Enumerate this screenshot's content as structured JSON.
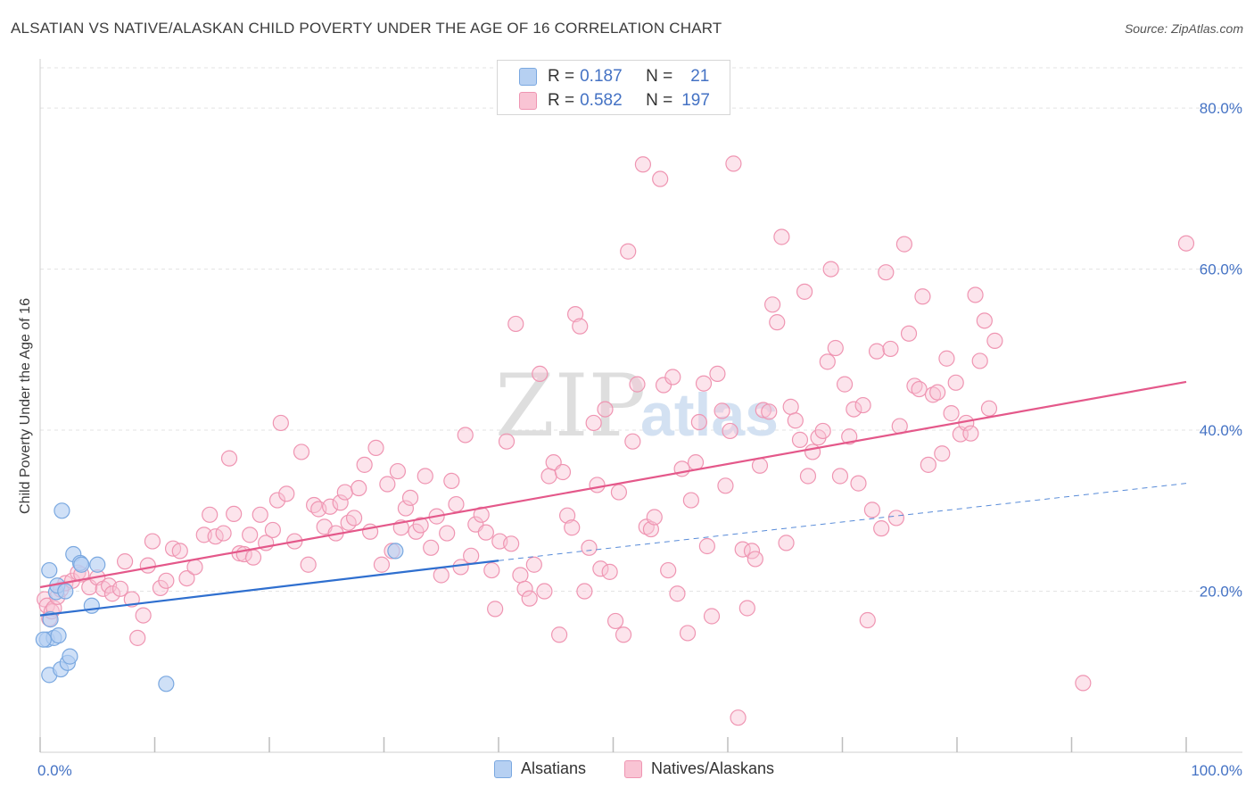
{
  "title": "ALSATIAN VS NATIVE/ALASKAN CHILD POVERTY UNDER THE AGE OF 16 CORRELATION CHART",
  "source": "Source: ZipAtlas.com",
  "watermark": {
    "zip": "ZIP",
    "atlas": "atlas"
  },
  "colors": {
    "blue_fill": "#b6d0f2",
    "blue_stroke": "#7aa8e0",
    "blue_line": "#2f6fcf",
    "pink_fill": "#f9c4d4",
    "pink_stroke": "#ef95b2",
    "pink_line": "#e4588a",
    "axis_text": "#4472c4",
    "grid": "#e3e3e3"
  },
  "legend": {
    "rows": [
      {
        "r_label": "R =",
        "r_value": "0.187",
        "n_label": "N =",
        "n_value": "21"
      },
      {
        "r_label": "R =",
        "r_value": "0.582",
        "n_label": "N =",
        "n_value": "197"
      }
    ],
    "bottom": [
      "Alsatians",
      "Natives/Alaskans"
    ]
  },
  "chart_data": {
    "type": "scatter",
    "title": "ALSATIAN VS NATIVE/ALASKAN CHILD POVERTY UNDER THE AGE OF 16 CORRELATION CHART",
    "xlabel": "",
    "ylabel": "Child Poverty Under the Age of 16",
    "xlim": [
      0,
      100
    ],
    "ylim": [
      0,
      85
    ],
    "x_tick_labels": [
      "0.0%",
      "100.0%"
    ],
    "y_ticks": [
      20,
      40,
      60,
      80
    ],
    "y_tick_labels": [
      "20.0%",
      "40.0%",
      "60.0%",
      "80.0%"
    ],
    "series": [
      {
        "name": "Alsatians",
        "r": 0.187,
        "n": 21,
        "trend": {
          "x0": 0,
          "y0": 17.0,
          "x1": 40,
          "y1": 23.8,
          "dash_x1": 100,
          "dash_y1": 33.4
        },
        "points": [
          [
            0.6,
            14.0
          ],
          [
            0.8,
            9.6
          ],
          [
            0.8,
            22.6
          ],
          [
            0.9,
            16.5
          ],
          [
            1.2,
            14.2
          ],
          [
            1.4,
            19.9
          ],
          [
            1.5,
            20.7
          ],
          [
            1.6,
            14.5
          ],
          [
            1.8,
            10.3
          ],
          [
            1.9,
            30.0
          ],
          [
            2.2,
            20.0
          ],
          [
            2.4,
            11.1
          ],
          [
            2.6,
            11.9
          ],
          [
            2.9,
            24.6
          ],
          [
            3.5,
            23.5
          ],
          [
            3.6,
            23.3
          ],
          [
            4.5,
            18.2
          ],
          [
            5.0,
            23.3
          ],
          [
            11.0,
            8.5
          ],
          [
            31.0,
            25.0
          ],
          [
            0.3,
            14.0
          ]
        ]
      },
      {
        "name": "Natives/Alaskans",
        "r": 0.582,
        "n": 197,
        "trend": {
          "x0": 0,
          "y0": 20.5,
          "x1": 100,
          "y1": 46.0
        },
        "points": [
          [
            0.4,
            19.0
          ],
          [
            0.6,
            18.2
          ],
          [
            0.8,
            16.6
          ],
          [
            1.0,
            17.5
          ],
          [
            1.2,
            17.9
          ],
          [
            1.5,
            19.3
          ],
          [
            1.8,
            20.2
          ],
          [
            2.2,
            21.0
          ],
          [
            2.8,
            21.3
          ],
          [
            3.3,
            22.3
          ],
          [
            3.6,
            22.1
          ],
          [
            4.3,
            20.5
          ],
          [
            5.0,
            21.7
          ],
          [
            5.5,
            20.3
          ],
          [
            6.0,
            20.7
          ],
          [
            6.3,
            19.7
          ],
          [
            7.0,
            20.3
          ],
          [
            7.4,
            23.7
          ],
          [
            8.0,
            19.0
          ],
          [
            8.5,
            14.2
          ],
          [
            9.0,
            17.0
          ],
          [
            9.4,
            23.2
          ],
          [
            9.8,
            26.2
          ],
          [
            10.5,
            20.4
          ],
          [
            11.0,
            21.3
          ],
          [
            11.6,
            25.3
          ],
          [
            12.2,
            25.0
          ],
          [
            12.8,
            21.6
          ],
          [
            13.5,
            23.0
          ],
          [
            14.3,
            27.0
          ],
          [
            14.8,
            29.5
          ],
          [
            15.3,
            26.8
          ],
          [
            16.0,
            27.2
          ],
          [
            16.5,
            36.5
          ],
          [
            16.9,
            29.6
          ],
          [
            17.4,
            24.7
          ],
          [
            17.8,
            24.6
          ],
          [
            18.3,
            27.0
          ],
          [
            18.6,
            24.2
          ],
          [
            19.2,
            29.5
          ],
          [
            19.7,
            26.0
          ],
          [
            20.3,
            27.6
          ],
          [
            20.7,
            31.3
          ],
          [
            21.0,
            40.9
          ],
          [
            21.5,
            32.1
          ],
          [
            22.2,
            26.2
          ],
          [
            22.8,
            37.3
          ],
          [
            23.4,
            23.3
          ],
          [
            23.9,
            30.7
          ],
          [
            24.3,
            30.2
          ],
          [
            24.8,
            28.0
          ],
          [
            25.3,
            30.5
          ],
          [
            25.8,
            27.2
          ],
          [
            26.2,
            31.0
          ],
          [
            26.6,
            32.3
          ],
          [
            26.9,
            28.5
          ],
          [
            27.4,
            29.1
          ],
          [
            27.8,
            32.8
          ],
          [
            28.3,
            35.7
          ],
          [
            28.8,
            27.4
          ],
          [
            29.3,
            37.8
          ],
          [
            29.8,
            23.3
          ],
          [
            30.3,
            33.3
          ],
          [
            30.7,
            25.0
          ],
          [
            31.2,
            34.9
          ],
          [
            31.5,
            27.9
          ],
          [
            31.9,
            30.3
          ],
          [
            32.3,
            31.6
          ],
          [
            32.8,
            27.4
          ],
          [
            33.2,
            28.2
          ],
          [
            33.6,
            34.3
          ],
          [
            34.1,
            25.4
          ],
          [
            34.6,
            29.3
          ],
          [
            35.0,
            22.0
          ],
          [
            35.5,
            27.2
          ],
          [
            35.9,
            33.7
          ],
          [
            36.3,
            30.8
          ],
          [
            36.7,
            23.0
          ],
          [
            37.1,
            39.4
          ],
          [
            37.6,
            24.4
          ],
          [
            38.0,
            28.3
          ],
          [
            38.5,
            29.5
          ],
          [
            38.9,
            27.3
          ],
          [
            39.4,
            22.6
          ],
          [
            39.7,
            17.8
          ],
          [
            40.1,
            26.2
          ],
          [
            40.7,
            38.6
          ],
          [
            41.1,
            25.9
          ],
          [
            41.5,
            53.2
          ],
          [
            41.9,
            22.0
          ],
          [
            42.3,
            20.3
          ],
          [
            42.7,
            19.1
          ],
          [
            43.1,
            23.3
          ],
          [
            43.6,
            47.0
          ],
          [
            44.0,
            20.0
          ],
          [
            44.4,
            34.3
          ],
          [
            44.8,
            36.0
          ],
          [
            45.3,
            14.6
          ],
          [
            45.6,
            34.8
          ],
          [
            46.0,
            29.4
          ],
          [
            46.4,
            27.9
          ],
          [
            46.7,
            54.4
          ],
          [
            47.1,
            52.9
          ],
          [
            47.5,
            20.0
          ],
          [
            47.9,
            25.4
          ],
          [
            48.3,
            40.9
          ],
          [
            48.6,
            33.2
          ],
          [
            48.9,
            22.8
          ],
          [
            49.3,
            42.6
          ],
          [
            49.7,
            22.4
          ],
          [
            50.2,
            16.3
          ],
          [
            50.5,
            32.3
          ],
          [
            50.9,
            14.6
          ],
          [
            51.3,
            62.2
          ],
          [
            51.7,
            38.6
          ],
          [
            52.1,
            45.7
          ],
          [
            52.6,
            73.0
          ],
          [
            52.9,
            28.0
          ],
          [
            53.3,
            27.7
          ],
          [
            53.6,
            29.2
          ],
          [
            54.1,
            71.2
          ],
          [
            54.4,
            45.6
          ],
          [
            54.8,
            22.6
          ],
          [
            55.2,
            46.6
          ],
          [
            55.6,
            19.7
          ],
          [
            56.0,
            35.2
          ],
          [
            56.5,
            14.8
          ],
          [
            56.8,
            31.3
          ],
          [
            57.2,
            36.0
          ],
          [
            57.5,
            41.0
          ],
          [
            57.9,
            45.8
          ],
          [
            58.2,
            25.6
          ],
          [
            58.6,
            16.9
          ],
          [
            59.1,
            47.0
          ],
          [
            59.5,
            42.4
          ],
          [
            59.8,
            33.1
          ],
          [
            60.2,
            39.9
          ],
          [
            60.5,
            73.1
          ],
          [
            60.9,
            4.3
          ],
          [
            61.3,
            25.2
          ],
          [
            61.7,
            17.9
          ],
          [
            62.1,
            25.0
          ],
          [
            62.4,
            24.0
          ],
          [
            62.8,
            35.6
          ],
          [
            63.1,
            42.5
          ],
          [
            63.6,
            42.3
          ],
          [
            63.9,
            55.6
          ],
          [
            64.3,
            53.4
          ],
          [
            64.7,
            64.0
          ],
          [
            65.1,
            26.0
          ],
          [
            65.5,
            42.9
          ],
          [
            65.9,
            41.2
          ],
          [
            66.3,
            38.8
          ],
          [
            66.7,
            57.2
          ],
          [
            67.0,
            34.3
          ],
          [
            67.4,
            37.3
          ],
          [
            67.9,
            39.1
          ],
          [
            68.3,
            39.9
          ],
          [
            68.7,
            48.5
          ],
          [
            69.0,
            60.0
          ],
          [
            69.4,
            50.2
          ],
          [
            69.8,
            34.3
          ],
          [
            70.2,
            45.7
          ],
          [
            70.6,
            39.2
          ],
          [
            71.0,
            42.6
          ],
          [
            71.4,
            33.4
          ],
          [
            71.8,
            43.1
          ],
          [
            72.2,
            16.4
          ],
          [
            72.6,
            30.1
          ],
          [
            73.0,
            49.8
          ],
          [
            73.4,
            27.8
          ],
          [
            73.8,
            59.6
          ],
          [
            74.2,
            50.1
          ],
          [
            74.7,
            29.1
          ],
          [
            75.0,
            40.5
          ],
          [
            75.4,
            63.1
          ],
          [
            75.8,
            52.0
          ],
          [
            76.3,
            45.5
          ],
          [
            76.7,
            45.1
          ],
          [
            77.0,
            56.6
          ],
          [
            77.5,
            35.7
          ],
          [
            77.9,
            44.4
          ],
          [
            78.3,
            44.7
          ],
          [
            78.7,
            37.1
          ],
          [
            79.1,
            48.9
          ],
          [
            79.5,
            42.1
          ],
          [
            79.9,
            45.9
          ],
          [
            80.3,
            39.5
          ],
          [
            80.8,
            40.9
          ],
          [
            81.2,
            39.6
          ],
          [
            81.6,
            56.8
          ],
          [
            82.0,
            48.6
          ],
          [
            82.4,
            53.6
          ],
          [
            82.8,
            42.7
          ],
          [
            83.3,
            51.1
          ],
          [
            100.0,
            63.2
          ],
          [
            91.0,
            8.6
          ]
        ]
      }
    ]
  }
}
